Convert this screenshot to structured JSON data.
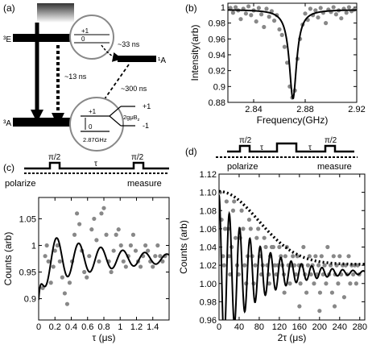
{
  "panel_labels": [
    "(a)",
    "(b)",
    "(c)",
    "(d)"
  ],
  "panel_a": {
    "level_3E": "³E",
    "level_3A": "³A",
    "level_1A": "¹A",
    "t_excite": "~13 ns",
    "t_isc": "~33 ns",
    "t_singlet": "~300 ns",
    "inset_top_plus1": "+1",
    "inset_top_zero": "0",
    "inset_bottom_plus1": "+1",
    "inset_bottom_zero": "0",
    "split_right_plus1": "+1",
    "split_right_minus1": "-1",
    "zeeman": "2gμB",
    "zeeman_sub": "z",
    "zfs": "2.87GHz"
  },
  "pulse_c": {
    "pi1": "π/2",
    "tau": "τ",
    "pi2": "π/2",
    "polarize": "polarize",
    "measure": "measure"
  },
  "pulse_d": {
    "pi1": "π/2",
    "tau1": "τ",
    "tau2": "τ",
    "pi2": "π/2",
    "polarize": "polarize",
    "measure": "measure"
  },
  "chart_data": [
    {
      "panel": "(b)",
      "type": "scatter",
      "xlabel": "Frequency(GHz)",
      "ylabel": "Intensity(arb)",
      "xlim": [
        2.82,
        2.92
      ],
      "ylim": [
        0.88,
        1.005
      ],
      "xticks": [
        2.84,
        2.88,
        2.92
      ],
      "xtick_labels": [
        "2.84",
        "2.88",
        "2.92"
      ],
      "yticks": [
        0.88,
        0.9,
        0.92,
        0.94,
        0.96,
        0.98,
        1.0
      ],
      "ytick_labels": [
        "0.88",
        "0.9",
        "0.92",
        "0.94",
        "0.96",
        "0.98",
        "1"
      ],
      "fit": {
        "baseline": 0.997,
        "center": 2.8705,
        "depth": 0.112,
        "width": 0.0035
      },
      "points": [
        [
          2.822,
          0.999
        ],
        [
          2.824,
          0.993
        ],
        [
          2.826,
          1.0
        ],
        [
          2.828,
          0.996
        ],
        [
          2.83,
          0.985
        ],
        [
          2.832,
          0.998
        ],
        [
          2.834,
          0.992
        ],
        [
          2.836,
          1.001
        ],
        [
          2.838,
          0.99
        ],
        [
          2.84,
          0.996
        ],
        [
          2.842,
          0.982
        ],
        [
          2.844,
          0.999
        ],
        [
          2.846,
          0.991
        ],
        [
          2.848,
          0.975
        ],
        [
          2.85,
          0.998
        ],
        [
          2.852,
          0.988
        ],
        [
          2.854,
          0.995
        ],
        [
          2.856,
          0.983
        ],
        [
          2.858,
          0.99
        ],
        [
          2.86,
          0.972
        ],
        [
          2.862,
          0.965
        ],
        [
          2.864,
          0.95
        ],
        [
          2.866,
          0.93
        ],
        [
          2.868,
          0.9
        ],
        [
          2.87,
          0.886
        ],
        [
          2.872,
          0.895
        ],
        [
          2.874,
          0.935
        ],
        [
          2.876,
          0.96
        ],
        [
          2.878,
          0.978
        ],
        [
          2.88,
          0.992
        ],
        [
          2.882,
          0.984
        ],
        [
          2.884,
          0.998
        ],
        [
          2.886,
          0.99
        ],
        [
          2.888,
          0.996
        ],
        [
          2.89,
          0.987
        ],
        [
          2.892,
          0.999
        ],
        [
          2.894,
          0.993
        ],
        [
          2.896,
          0.98
        ],
        [
          2.898,
          0.997
        ],
        [
          2.9,
          0.994
        ],
        [
          2.902,
          1.0
        ],
        [
          2.904,
          0.991
        ],
        [
          2.906,
          0.996
        ],
        [
          2.908,
          0.986
        ],
        [
          2.91,
          0.998
        ],
        [
          2.912,
          0.993
        ],
        [
          2.914,
          1.0
        ],
        [
          2.916,
          0.995
        ],
        [
          2.918,
          0.997
        ]
      ]
    },
    {
      "panel": "(c)",
      "type": "scatter",
      "xlabel": "τ (μs)",
      "ylabel": "Counts (arb)",
      "xlim": [
        0,
        1.6
      ],
      "ylim": [
        0.86,
        1.09
      ],
      "xticks": [
        0,
        0.2,
        0.4,
        0.6,
        0.8,
        1,
        1.2,
        1.4
      ],
      "xtick_labels": [
        "0",
        "0.2",
        "0.4",
        "0.6",
        "0.8",
        "1",
        "1.2",
        "1.4"
      ],
      "yticks": [
        0.9,
        0.95,
        1.0,
        1.05
      ],
      "ytick_labels": [
        "0.9",
        "0.95",
        "1",
        "1.05"
      ],
      "fit": {
        "base": 0.975,
        "amp": 0.05,
        "freq": 3.7,
        "decay": 0.9,
        "phase": 1.1
      },
      "points": [
        [
          0.02,
          0.84
        ],
        [
          0.05,
          0.92
        ],
        [
          0.08,
          0.98
        ],
        [
          0.1,
          1.0
        ],
        [
          0.12,
          0.97
        ],
        [
          0.15,
          0.93
        ],
        [
          0.18,
          0.96
        ],
        [
          0.2,
          0.99
        ],
        [
          0.23,
          1.0
        ],
        [
          0.26,
          0.97
        ],
        [
          0.29,
          0.94
        ],
        [
          0.32,
          0.91
        ],
        [
          0.35,
          0.89
        ],
        [
          0.38,
          0.93
        ],
        [
          0.41,
          0.97
        ],
        [
          0.44,
          1.02
        ],
        [
          0.47,
          1.06
        ],
        [
          0.5,
          1.04
        ],
        [
          0.53,
          0.99
        ],
        [
          0.56,
          0.95
        ],
        [
          0.59,
          0.94
        ],
        [
          0.62,
          0.98
        ],
        [
          0.65,
          1.03
        ],
        [
          0.68,
          1.05
        ],
        [
          0.71,
          1.01
        ],
        [
          0.74,
          0.97
        ],
        [
          0.77,
          1.06
        ],
        [
          0.8,
          1.07
        ],
        [
          0.83,
          1.02
        ],
        [
          0.86,
          0.97
        ],
        [
          0.89,
          0.95
        ],
        [
          0.92,
          0.99
        ],
        [
          0.95,
          1.02
        ],
        [
          0.98,
          1.03
        ],
        [
          1.01,
          1.0
        ],
        [
          1.04,
          0.97
        ],
        [
          1.07,
          0.96
        ],
        [
          1.1,
          0.98
        ],
        [
          1.13,
          1.0
        ],
        [
          1.16,
          1.02
        ],
        [
          1.19,
          0.99
        ],
        [
          1.22,
          0.97
        ],
        [
          1.25,
          0.96
        ],
        [
          1.28,
          0.98
        ],
        [
          1.31,
          1.0
        ],
        [
          1.34,
          0.99
        ],
        [
          1.37,
          0.97
        ],
        [
          1.4,
          0.96
        ],
        [
          1.43,
          0.98
        ],
        [
          1.46,
          1.0
        ],
        [
          1.49,
          0.98
        ],
        [
          1.52,
          0.97
        ],
        [
          1.55,
          0.98
        ]
      ]
    },
    {
      "panel": "(d)",
      "type": "scatter",
      "xlabel": "2τ (μs)",
      "ylabel": "Counts (arb)",
      "xlim": [
        0,
        290
      ],
      "ylim": [
        0.96,
        1.12
      ],
      "xticks": [
        0,
        40,
        80,
        120,
        160,
        200,
        240,
        280
      ],
      "xtick_labels": [
        "0",
        "40",
        "80",
        "120",
        "160",
        "200",
        "240",
        "280"
      ],
      "yticks": [
        0.96,
        0.98,
        1.0,
        1.02,
        1.04,
        1.06,
        1.08,
        1.1,
        1.12
      ],
      "ytick_labels": [
        "0.96",
        "0.98",
        "1.00",
        "1.02",
        "1.04",
        "1.06",
        "1.08",
        "1.10",
        "1.12"
      ],
      "fit": {
        "base": 1.012,
        "amp": 0.085,
        "period": 20.5,
        "decay": 75
      },
      "envelope": {
        "base": 1.021,
        "amp": 0.08,
        "decay": 110,
        "power": 2
      },
      "points": [
        [
          2,
          1.1
        ],
        [
          5,
          1.07
        ],
        [
          8,
          1.03
        ],
        [
          10,
          1.02
        ],
        [
          12,
          1.06
        ],
        [
          15,
          1.09
        ],
        [
          18,
          1.06
        ],
        [
          20,
          1.03
        ],
        [
          22,
          1.01
        ],
        [
          25,
          1.04
        ],
        [
          28,
          1.08
        ],
        [
          30,
          1.09
        ],
        [
          33,
          1.05
        ],
        [
          36,
          1.02
        ],
        [
          39,
          1.01
        ],
        [
          42,
          1.05
        ],
        [
          45,
          1.08
        ],
        [
          48,
          1.06
        ],
        [
          51,
          1.02
        ],
        [
          54,
          1.0
        ],
        [
          57,
          1.03
        ],
        [
          60,
          1.07
        ],
        [
          63,
          1.06
        ],
        [
          66,
          1.03
        ],
        [
          69,
          1.0
        ],
        [
          72,
          1.02
        ],
        [
          75,
          1.05
        ],
        [
          78,
          1.06
        ],
        [
          81,
          1.03
        ],
        [
          84,
          1.01
        ],
        [
          87,
          1.02
        ],
        [
          90,
          1.05
        ],
        [
          93,
          1.04
        ],
        [
          96,
          1.02
        ],
        [
          99,
          1.01
        ],
        [
          102,
          1.03
        ],
        [
          105,
          1.04
        ],
        [
          108,
          1.04
        ],
        [
          111,
          1.02
        ],
        [
          114,
          1.01
        ],
        [
          117,
          1.02
        ],
        [
          120,
          1.04
        ],
        [
          123,
          1.03
        ],
        [
          126,
          1.02
        ],
        [
          129,
          1.01
        ],
        [
          132,
          1.03
        ],
        [
          135,
          1.04
        ],
        [
          138,
          1.02
        ],
        [
          141,
          1.0
        ],
        [
          144,
          1.02
        ],
        [
          147,
          1.03
        ],
        [
          150,
          1.02
        ],
        [
          153,
          1.01
        ],
        [
          156,
          1.03
        ],
        [
          159,
          1.02
        ],
        [
          162,
          1.0
        ],
        [
          165,
          1.02
        ],
        [
          168,
          1.04
        ],
        [
          171,
          1.01
        ],
        [
          174,
          0.99
        ],
        [
          177,
          1.02
        ],
        [
          180,
          1.03
        ],
        [
          183,
          1.01
        ],
        [
          186,
          1.02
        ],
        [
          189,
          1.0
        ],
        [
          192,
          1.03
        ],
        [
          195,
          1.01
        ],
        [
          198,
          1.02
        ],
        [
          201,
          0.99
        ],
        [
          204,
          1.03
        ],
        [
          207,
          1.01
        ],
        [
          210,
          1.02
        ],
        [
          213,
          1.0
        ],
        [
          216,
          1.04
        ],
        [
          219,
          1.01
        ],
        [
          222,
          1.02
        ],
        [
          225,
          0.99
        ],
        [
          228,
          1.03
        ],
        [
          231,
          1.01
        ],
        [
          234,
          1.02
        ],
        [
          237,
          1.0
        ],
        [
          240,
          1.03
        ],
        [
          243,
          1.01
        ],
        [
          246,
          1.02
        ],
        [
          249,
          0.985
        ],
        [
          252,
          1.02
        ],
        [
          255,
          1.01
        ],
        [
          258,
          1.03
        ],
        [
          261,
          1.0
        ],
        [
          264,
          1.02
        ],
        [
          267,
          1.01
        ],
        [
          270,
          1.02
        ],
        [
          273,
          1.0
        ],
        [
          276,
          1.02
        ],
        [
          279,
          1.01
        ],
        [
          160,
          0.975
        ],
        [
          200,
          0.97
        ],
        [
          230,
          0.975
        ],
        [
          130,
          0.99
        ],
        [
          100,
          1.0
        ]
      ]
    }
  ]
}
